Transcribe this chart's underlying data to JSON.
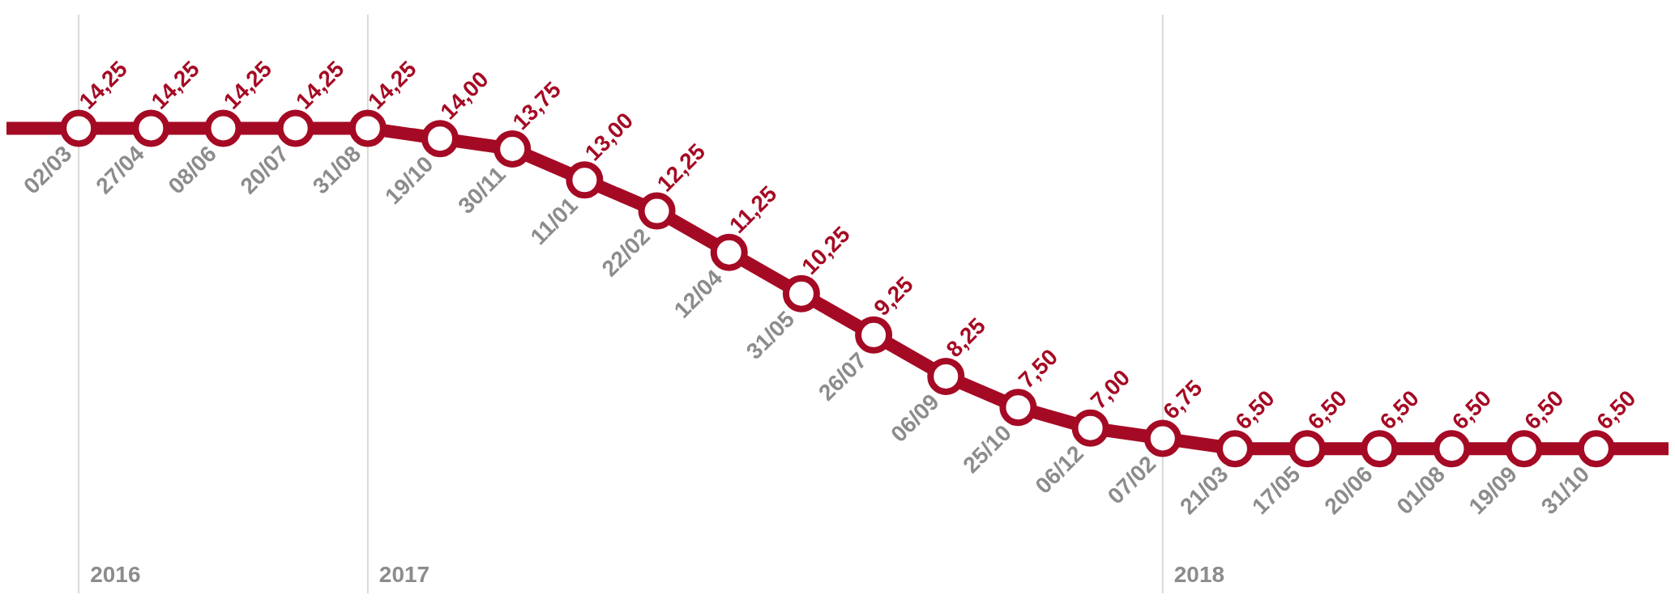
{
  "chart_data": {
    "type": "line",
    "categories": [
      null,
      "02/03",
      "27/04",
      "08/06",
      "20/07",
      "31/08",
      "19/10",
      "30/11",
      "11/01",
      "22/02",
      "12/04",
      "31/05",
      "26/07",
      "06/09",
      "25/10",
      "06/12",
      "07/02",
      "21/03",
      "17/05",
      "20/06",
      "01/08",
      "19/09",
      "31/10",
      null
    ],
    "series": [
      {
        "color": "#a50a24",
        "values": [
          14.25,
          14.25,
          14.25,
          14.25,
          14.25,
          14.25,
          14.0,
          13.75,
          13.0,
          12.25,
          11.25,
          10.25,
          9.25,
          8.25,
          7.5,
          7.0,
          6.75,
          6.5,
          6.5,
          6.5,
          6.5,
          6.5,
          6.5,
          6.5
        ],
        "value_labels": [
          null,
          "14,25",
          "14,25",
          "14,25",
          "14,25",
          "14,25",
          "14,00",
          "13,75",
          "13,00",
          "12,25",
          "11,25",
          "10,25",
          "9,25",
          "8,25",
          "7,50",
          "7,00",
          "6,75",
          "6,50",
          "6,50",
          "6,50",
          "6,50",
          "6,50",
          "6,50",
          null
        ]
      }
    ],
    "ylim": [
      3,
      17
    ],
    "tick_labels": "x",
    "grid": false,
    "legend": false,
    "marker": "circle",
    "line_style": "solid",
    "ref_lines": [
      {
        "axis": "x",
        "value": "02/03",
        "label": "2016",
        "color": "#d9d9d9"
      },
      {
        "axis": "x",
        "value": "31/08",
        "label": "2017",
        "color": "#d9d9d9"
      },
      {
        "axis": "x",
        "value": "07/02",
        "label": "2018",
        "color": "#d9d9d9"
      }
    ]
  }
}
